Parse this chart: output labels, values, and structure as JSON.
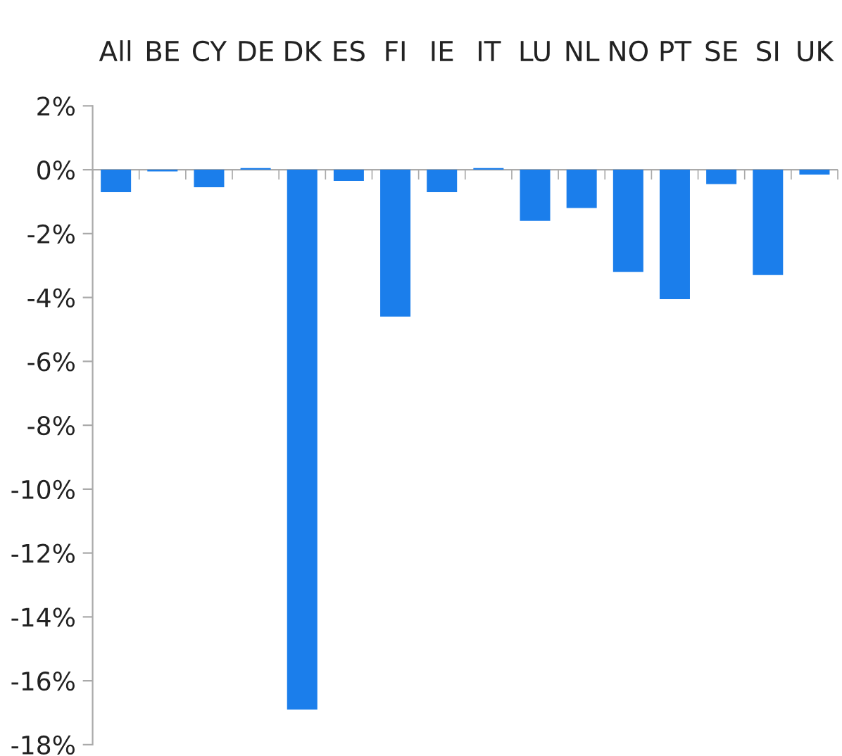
{
  "chart_data": {
    "type": "bar",
    "categories": [
      "All",
      "BE",
      "CY",
      "DE",
      "DK",
      "ES",
      "FI",
      "IE",
      "IT",
      "LU",
      "NL",
      "NO",
      "PT",
      "SE",
      "SI",
      "UK"
    ],
    "values": [
      -0.7,
      -0.05,
      -0.55,
      0.05,
      -16.9,
      -0.35,
      -4.6,
      -0.7,
      0.05,
      -1.6,
      -1.2,
      -3.2,
      -4.05,
      -0.45,
      -3.3,
      -0.15
    ],
    "color": "#1b7eeb",
    "ylim": [
      -18,
      2
    ],
    "yticks": [
      {
        "value": 2,
        "label": "2%"
      },
      {
        "value": 0,
        "label": "0%"
      },
      {
        "value": -2,
        "label": "-2%"
      },
      {
        "value": -4,
        "label": "-4%"
      },
      {
        "value": -6,
        "label": "-6%"
      },
      {
        "value": -8,
        "label": "-8%"
      },
      {
        "value": -10,
        "label": "-10%"
      },
      {
        "value": -12,
        "label": "-12%"
      },
      {
        "value": -14,
        "label": "-14%"
      },
      {
        "value": -16,
        "label": "-16%"
      },
      {
        "value": -18,
        "label": "-18%"
      }
    ],
    "ref_lines": [
      {
        "axis": "y",
        "value": 0,
        "color": "#aaaaaa",
        "line_style": "solid"
      }
    ],
    "grid": false
  }
}
